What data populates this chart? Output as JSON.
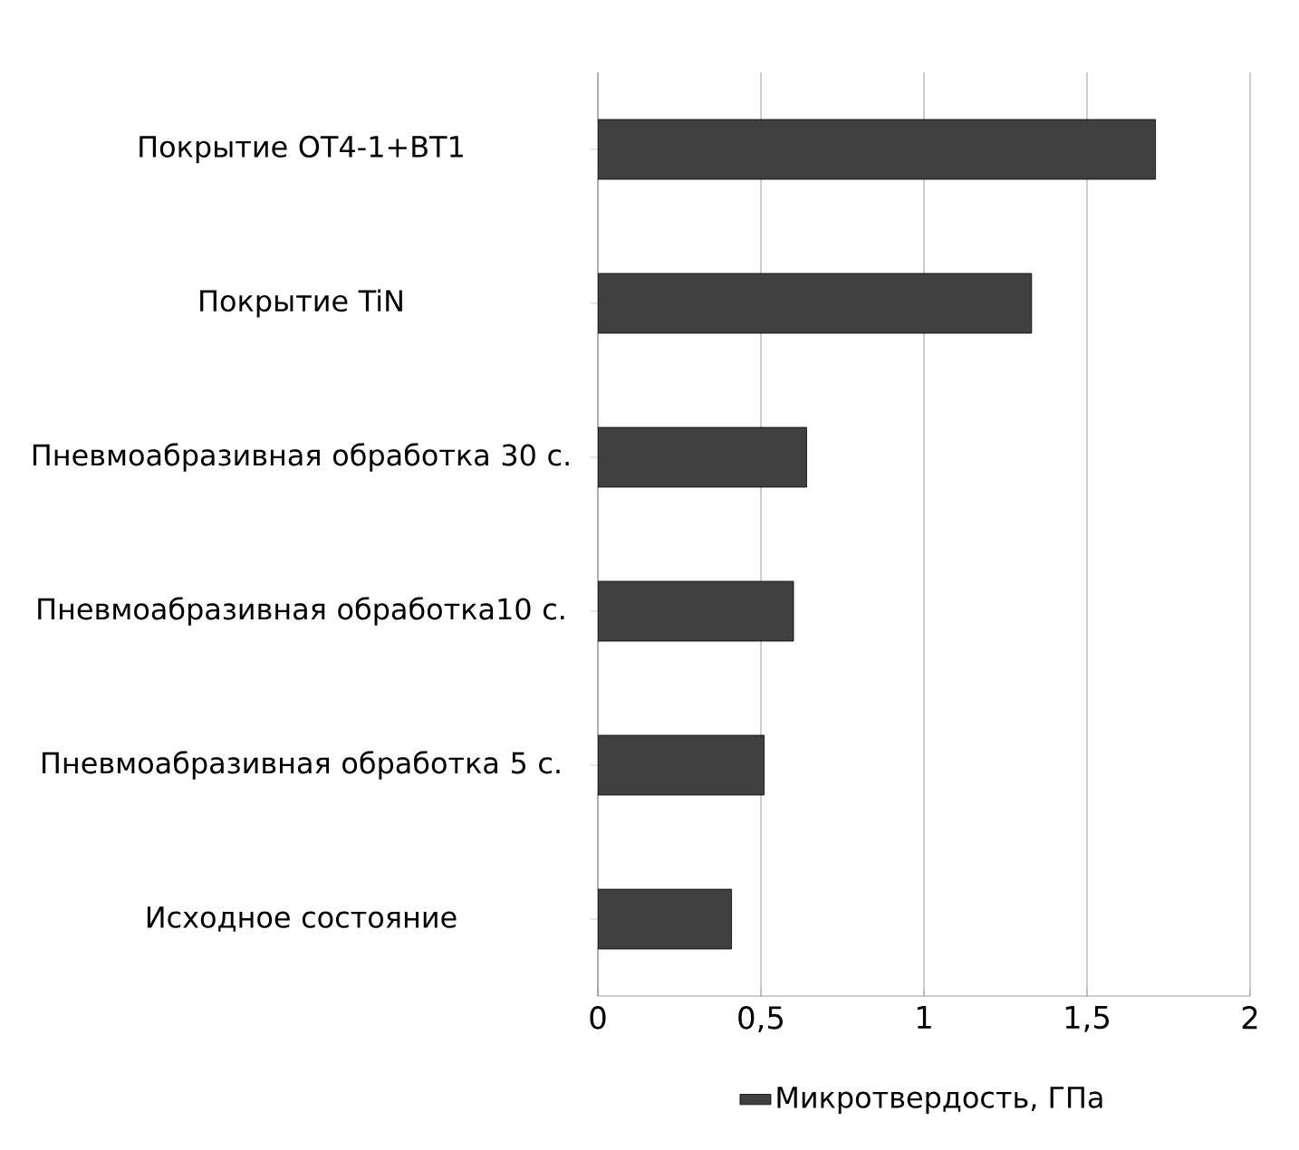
{
  "chart_data": {
    "type": "bar",
    "orientation": "horizontal",
    "categories": [
      "Покрытие ОТ4-1+ВТ1",
      "Покрытие TiN",
      "Пневмоабразивная обработка 30 с.",
      "Пневмоабразивная обработка10 с.",
      "Пневмоабразивная обработка 5 с.",
      "Исходное состояние"
    ],
    "series": [
      {
        "name": "Микротвердость, ГПа",
        "color": "#404040",
        "values": [
          1.71,
          1.33,
          0.64,
          0.6,
          0.51,
          0.41
        ]
      }
    ],
    "xlim": [
      0,
      2
    ],
    "xticks": [
      0,
      {
        "value": 0.5,
        "label": "0,5"
      },
      1,
      {
        "value": 1.5,
        "label": "1,5"
      },
      2
    ],
    "grid": "x",
    "legend": "bottom"
  }
}
